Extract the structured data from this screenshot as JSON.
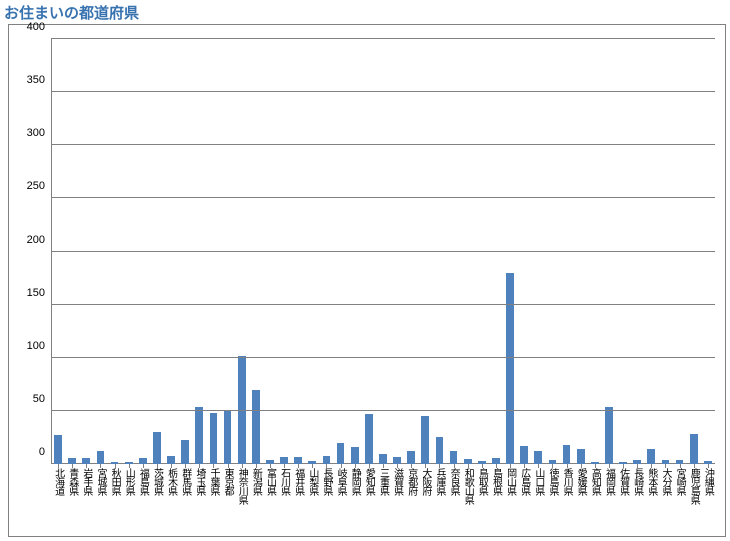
{
  "title": "お住まいの都道府県",
  "title_color": "#3873b0",
  "chart": {
    "type": "bar",
    "background_color": "#ffffff",
    "border_color": "#808080",
    "grid_color": "#808080",
    "bar_color": "#4f81bd",
    "label_color": "#000000",
    "label_fontsize": 10,
    "ytick_fontsize": 11,
    "ylim": [
      0,
      400
    ],
    "ytick_step": 50,
    "bar_width": 0.55,
    "categories": [
      "北海道",
      "青森県",
      "岩手県",
      "宮城県",
      "秋田県",
      "山形県",
      "福島県",
      "茨城県",
      "栃木県",
      "群馬県",
      "埼玉県",
      "千葉県",
      "東京都",
      "神奈川県",
      "新潟県",
      "富山県",
      "石川県",
      "福井県",
      "山梨県",
      "長野県",
      "岐阜県",
      "静岡県",
      "愛知県",
      "三重県",
      "滋賀県",
      "京都府",
      "大阪府",
      "兵庫県",
      "奈良県",
      "和歌山県",
      "鳥取県",
      "島根県",
      "岡山県",
      "広島県",
      "山口県",
      "徳島県",
      "香川県",
      "愛媛県",
      "高知県",
      "福岡県",
      "佐賀県",
      "長崎県",
      "熊本県",
      "大分県",
      "宮崎県",
      "鹿児島県",
      "沖縄県"
    ],
    "values": [
      27,
      6,
      6,
      12,
      2,
      2,
      6,
      30,
      8,
      23,
      54,
      48,
      50,
      102,
      70,
      4,
      7,
      7,
      3,
      8,
      20,
      16,
      47,
      9,
      7,
      12,
      45,
      25,
      12,
      5,
      3,
      6,
      180,
      17,
      12,
      4,
      18,
      14,
      2,
      54,
      2,
      4,
      14,
      4,
      4,
      28,
      3
    ]
  }
}
